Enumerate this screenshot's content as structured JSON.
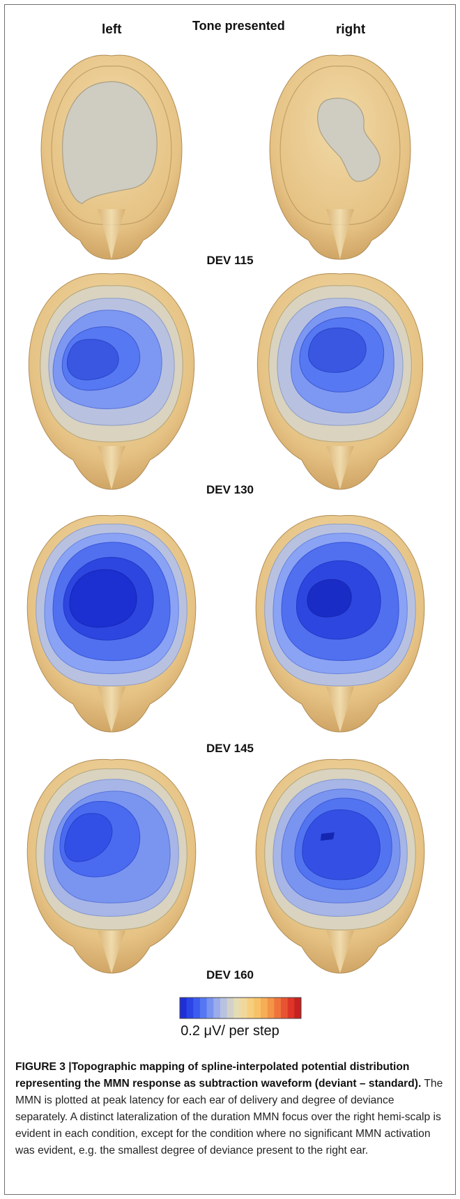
{
  "column_headers": {
    "left": "left",
    "title": "Tone presented",
    "right": "right"
  },
  "conditions": [
    "DEV 115",
    "DEV 130",
    "DEV 145",
    "DEV 160"
  ],
  "colorbar": {
    "colors": [
      "#1f2fd8",
      "#2b44e6",
      "#3c5cf0",
      "#5777f2",
      "#7893f0",
      "#9aacea",
      "#b8c2e0",
      "#d2d0c8",
      "#e6dcb4",
      "#f2d79a",
      "#f5cf7e",
      "#f7c267",
      "#f6ad55",
      "#f39447",
      "#ee743c",
      "#e85433",
      "#dd3628",
      "#c82121"
    ],
    "label": "0.2 μV/ per step"
  },
  "colors": {
    "scalp": "#e7c88a",
    "scalp_edge": "#b39058",
    "grey": "#cfccc2",
    "blue_light": "#8aa3f4",
    "blue_mid": "#4f70f0",
    "blue_dark": "#1c2fd0"
  },
  "caption": {
    "heading": "FIGURE 3 |Topographic mapping of spline-interpolated potential distribution representing the MMN response as subtraction waveform (deviant – standard).",
    "body": "The MMN is plotted at peak latency for each ear of delivery and degree of deviance separately. A distinct lateralization of the duration MMN focus over the right hemi-scalp is evident in each condition, except for the condition where no significant MMN activation was evident, e.g. the smallest degree of deviance present to the right ear."
  }
}
